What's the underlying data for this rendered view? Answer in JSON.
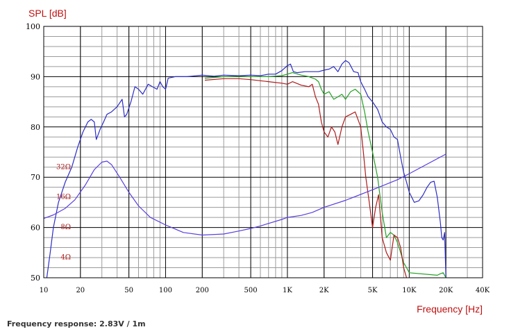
{
  "chart_data": {
    "type": "line",
    "ylabel": "SPL [dB]",
    "xlabel": "Frequency [Hz]",
    "x_scale": "log",
    "xlim": [
      10,
      40000
    ],
    "ylim": [
      50,
      100
    ],
    "grid": true,
    "x_tick_values": [
      10,
      20,
      50,
      100,
      200,
      500,
      1000,
      2000,
      5000,
      10000,
      20000,
      40000
    ],
    "x_tick_labels": [
      "10",
      "20",
      "50",
      "100",
      "200",
      "500",
      "1K",
      "2K",
      "5K",
      "10K",
      "20K",
      "40K"
    ],
    "y_tick_values": [
      50,
      60,
      70,
      80,
      90,
      100
    ],
    "y_tick_labels": [
      "50",
      "60",
      "70",
      "80",
      "90",
      "100"
    ],
    "impedance_labels": [
      {
        "text": "32Ω",
        "y": 72.2
      },
      {
        "text": "16Ω",
        "y": 66.2
      },
      {
        "text": "8Ω",
        "y": 60.2
      },
      {
        "text": "4Ω",
        "y": 54.2
      }
    ],
    "series": [
      {
        "color": "#2b2bc8",
        "points": [
          [
            10.6,
            50
          ],
          [
            11.3,
            55
          ],
          [
            12,
            60
          ],
          [
            13.2,
            65
          ],
          [
            15,
            69
          ],
          [
            17,
            72
          ],
          [
            19,
            76
          ],
          [
            21,
            79
          ],
          [
            23,
            81
          ],
          [
            24.5,
            81.5
          ],
          [
            26,
            81
          ],
          [
            27,
            77.5
          ],
          [
            29,
            79.5
          ],
          [
            31,
            81
          ],
          [
            33,
            82.5
          ],
          [
            36,
            83
          ],
          [
            40,
            84
          ],
          [
            44,
            85.5
          ],
          [
            46,
            82
          ],
          [
            48,
            82.5
          ],
          [
            52,
            85
          ],
          [
            56,
            88
          ],
          [
            60,
            87.5
          ],
          [
            65,
            86.5
          ],
          [
            72,
            88.5
          ],
          [
            78,
            88
          ],
          [
            85,
            87.5
          ],
          [
            90,
            89
          ],
          [
            95,
            88
          ],
          [
            100,
            87.5
          ],
          [
            105,
            89.7
          ],
          [
            120,
            90
          ],
          [
            150,
            90
          ],
          [
            200,
            90.3
          ],
          [
            250,
            90.1
          ],
          [
            300,
            90.3
          ],
          [
            400,
            90.2
          ],
          [
            500,
            90.3
          ],
          [
            600,
            90.2
          ],
          [
            700,
            90.5
          ],
          [
            800,
            90.5
          ],
          [
            900,
            91.2
          ],
          [
            1000,
            92.2
          ],
          [
            1060,
            92.5
          ],
          [
            1120,
            91
          ],
          [
            1200,
            90.8
          ],
          [
            1400,
            91
          ],
          [
            1600,
            91
          ],
          [
            1800,
            91
          ],
          [
            2000,
            91.3
          ],
          [
            2200,
            91.5
          ],
          [
            2400,
            92
          ],
          [
            2600,
            91
          ],
          [
            2800,
            92.5
          ],
          [
            3000,
            93.2
          ],
          [
            3200,
            92.8
          ],
          [
            3500,
            91
          ],
          [
            3800,
            90.8
          ],
          [
            4000,
            89
          ],
          [
            4300,
            87.5
          ],
          [
            4600,
            86
          ],
          [
            5000,
            85
          ],
          [
            5500,
            83.5
          ],
          [
            6000,
            81
          ],
          [
            6500,
            80
          ],
          [
            7000,
            79.5
          ],
          [
            7500,
            78
          ],
          [
            8000,
            77.5
          ],
          [
            8500,
            74
          ],
          [
            9000,
            71
          ],
          [
            9500,
            69
          ],
          [
            10000,
            67
          ],
          [
            11000,
            65
          ],
          [
            12000,
            65.3
          ],
          [
            13000,
            66.5
          ],
          [
            14000,
            68
          ],
          [
            15000,
            69
          ],
          [
            16000,
            69.2
          ],
          [
            17000,
            66
          ],
          [
            18000,
            61
          ],
          [
            18500,
            58
          ],
          [
            19000,
            57.5
          ],
          [
            19500,
            59
          ],
          [
            20000,
            50
          ]
        ]
      },
      {
        "color": "#22a022",
        "points": [
          [
            210,
            89.7
          ],
          [
            300,
            90
          ],
          [
            400,
            90.1
          ],
          [
            500,
            90
          ],
          [
            700,
            90
          ],
          [
            900,
            90.2
          ],
          [
            1000,
            90.5
          ],
          [
            1100,
            90.8
          ],
          [
            1300,
            90.3
          ],
          [
            1500,
            90
          ],
          [
            1700,
            89.5
          ],
          [
            1800,
            89
          ],
          [
            1900,
            87.5
          ],
          [
            2000,
            86.5
          ],
          [
            2200,
            87
          ],
          [
            2400,
            85.5
          ],
          [
            2600,
            86
          ],
          [
            2800,
            86.5
          ],
          [
            3000,
            85.5
          ],
          [
            3300,
            87
          ],
          [
            3600,
            87.5
          ],
          [
            4000,
            86.5
          ],
          [
            4300,
            83
          ],
          [
            4600,
            79
          ],
          [
            5000,
            75
          ],
          [
            5500,
            70
          ],
          [
            6000,
            63
          ],
          [
            6500,
            58
          ],
          [
            7000,
            59
          ],
          [
            7500,
            58.5
          ],
          [
            8000,
            57
          ],
          [
            8500,
            55
          ],
          [
            9000,
            53
          ],
          [
            9500,
            52
          ],
          [
            10000,
            51
          ],
          [
            17000,
            50.5
          ],
          [
            18000,
            50.8
          ],
          [
            19000,
            51
          ],
          [
            20000,
            50
          ]
        ]
      },
      {
        "color": "#b01818",
        "points": [
          [
            210,
            89.3
          ],
          [
            300,
            89.6
          ],
          [
            400,
            89.6
          ],
          [
            500,
            89.4
          ],
          [
            700,
            89
          ],
          [
            900,
            88.7
          ],
          [
            1000,
            88.5
          ],
          [
            1100,
            89
          ],
          [
            1300,
            88.3
          ],
          [
            1500,
            88
          ],
          [
            1600,
            88.5
          ],
          [
            1700,
            86
          ],
          [
            1800,
            84.5
          ],
          [
            1900,
            81
          ],
          [
            2000,
            79
          ],
          [
            2150,
            78
          ],
          [
            2300,
            80
          ],
          [
            2450,
            79
          ],
          [
            2600,
            76.5
          ],
          [
            2800,
            80
          ],
          [
            3000,
            82
          ],
          [
            3300,
            82.5
          ],
          [
            3600,
            83
          ],
          [
            4000,
            80
          ],
          [
            4200,
            75
          ],
          [
            4400,
            70
          ],
          [
            4700,
            65
          ],
          [
            5000,
            60
          ],
          [
            5300,
            64
          ],
          [
            5600,
            66.5
          ],
          [
            6000,
            58
          ],
          [
            6500,
            55
          ],
          [
            7000,
            53.5
          ],
          [
            7500,
            58.5
          ],
          [
            8000,
            58
          ],
          [
            8500,
            56
          ],
          [
            9000,
            52
          ],
          [
            9500,
            50
          ]
        ]
      },
      {
        "color": "#5a3ee0",
        "points": [
          [
            10,
            61.8
          ],
          [
            12,
            62.5
          ],
          [
            15,
            63.8
          ],
          [
            18,
            65.5
          ],
          [
            22,
            68.5
          ],
          [
            26,
            71.5
          ],
          [
            30,
            73
          ],
          [
            33,
            73.2
          ],
          [
            36,
            72.5
          ],
          [
            42,
            70
          ],
          [
            50,
            67
          ],
          [
            60,
            64.3
          ],
          [
            75,
            62
          ],
          [
            100,
            60.5
          ],
          [
            140,
            59
          ],
          [
            200,
            58.5
          ],
          [
            300,
            58.7
          ],
          [
            400,
            59.3
          ],
          [
            500,
            59.8
          ],
          [
            600,
            60.3
          ],
          [
            700,
            60.8
          ],
          [
            900,
            61.6
          ],
          [
            1000,
            62
          ],
          [
            1300,
            62.4
          ],
          [
            1600,
            63
          ],
          [
            2000,
            64
          ],
          [
            3000,
            65.4
          ],
          [
            5000,
            67.5
          ],
          [
            8000,
            69.5
          ],
          [
            10000,
            70.7
          ],
          [
            20000,
            74.6
          ]
        ]
      }
    ]
  },
  "caption": "Frequency response: 2.83V / 1m"
}
